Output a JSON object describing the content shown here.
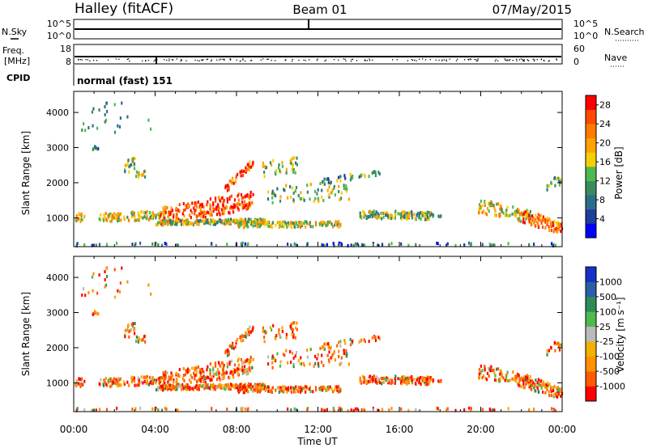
{
  "header": {
    "station": "Halley (fitACF)",
    "beam": "Beam 01",
    "date": "07/May/2015"
  },
  "panels": {
    "nsky": {
      "left_label": "N.Sky",
      "right_label": "N.Search",
      "left_ticks": [
        "10^5",
        "10^0"
      ],
      "right_ticks": [
        "10^5",
        "10^0"
      ]
    },
    "freq": {
      "left_label_top": "Freq.",
      "left_label_bottom": "[MHz]",
      "right_label": "Nave",
      "left_ticks": [
        "18",
        "8"
      ],
      "right_ticks": [
        "60",
        "0"
      ]
    },
    "cpid": {
      "label": "CPID",
      "value": "normal (fast) 151"
    }
  },
  "colors": {
    "power": [
      "#0000ff",
      "#1f3d9a",
      "#2c6e8a",
      "#3a8c5e",
      "#4fb84f",
      "#f5d000",
      "#ffa300",
      "#ff7b00",
      "#ff4a00",
      "#ff0000"
    ],
    "velocity": [
      "#ff0000",
      "#ff5a00",
      "#ff9000",
      "#f2b000",
      "#bbbbbb",
      "#4fb84f",
      "#2e8b57",
      "#2a5fa8",
      "#1432c8"
    ]
  },
  "chart_data": [
    {
      "type": "heatmap",
      "name": "power",
      "ylabel": "Slant Range [km]",
      "xlim": [
        0,
        24
      ],
      "ylim": [
        180,
        4600
      ],
      "yticks": [
        {
          "v": 1000,
          "label": "1000"
        },
        {
          "v": 2000,
          "label": "2000"
        },
        {
          "v": 3000,
          "label": "3000"
        },
        {
          "v": 4000,
          "label": "4000"
        }
      ],
      "colorbar": {
        "label": "Power [dB]",
        "min": 0,
        "max": 30,
        "ticks": [
          {
            "v": 4,
            "label": "4"
          },
          {
            "v": 8,
            "label": "8"
          },
          {
            "v": 12,
            "label": "12"
          },
          {
            "v": 16,
            "label": "16"
          },
          {
            "v": 20,
            "label": "20"
          },
          {
            "v": 24,
            "label": "24"
          },
          {
            "v": 28,
            "label": "28"
          }
        ]
      }
    },
    {
      "type": "heatmap",
      "name": "velocity",
      "ylabel": "Slant Range [km]",
      "xlabel": "Time UT",
      "xlim": [
        0,
        24
      ],
      "ylim": [
        180,
        4600
      ],
      "xticks": [
        {
          "v": 0,
          "label": "00:00"
        },
        {
          "v": 4,
          "label": "04:00"
        },
        {
          "v": 8,
          "label": "08:00"
        },
        {
          "v": 12,
          "label": "12:00"
        },
        {
          "v": 16,
          "label": "16:00"
        },
        {
          "v": 20,
          "label": "20:00"
        },
        {
          "v": 24,
          "label": "00:00"
        }
      ],
      "yticks": [
        {
          "v": 1000,
          "label": "1000"
        },
        {
          "v": 2000,
          "label": "2000"
        },
        {
          "v": 3000,
          "label": "3000"
        },
        {
          "v": 4000,
          "label": "4000"
        }
      ],
      "colorbar": {
        "label": "Velocity [m s⁻¹]",
        "tick_labels": [
          "-1000",
          "-500",
          "-100",
          "-25",
          "25",
          "100",
          "500",
          "1000"
        ]
      }
    }
  ]
}
